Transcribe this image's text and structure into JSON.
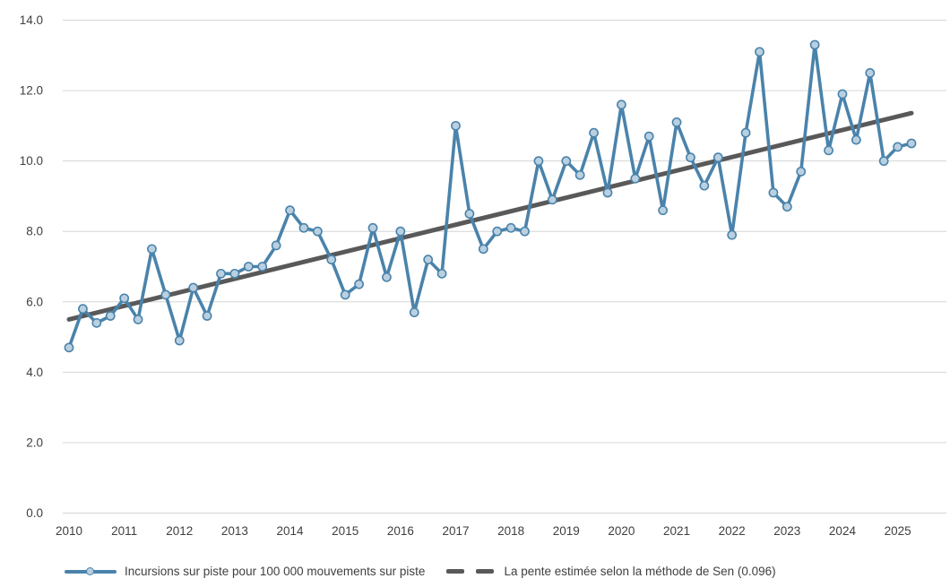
{
  "chart_data": {
    "type": "line",
    "title": "",
    "xlabel": "",
    "ylabel": "",
    "ylim": [
      0.0,
      14.0
    ],
    "y_tick_step": 2.0,
    "y_tick_labels": [
      "0.0",
      "2.0",
      "4.0",
      "6.0",
      "8.0",
      "10.0",
      "12.0",
      "14.0"
    ],
    "x_tick_labels": [
      "2010",
      "2011",
      "2012",
      "2013",
      "2014",
      "2015",
      "2016",
      "2017",
      "2018",
      "2019",
      "2020",
      "2021",
      "2022",
      "2023",
      "2024",
      "2025"
    ],
    "x_unit": "quarter",
    "grid": "horizontal",
    "legend_position": "bottom",
    "series": [
      {
        "name": "Incursions sur piste pour 100 000 mouvements sur piste",
        "kind": "line-with-markers",
        "color": "#4a83ab",
        "marker_fill": "#bad0e0",
        "start": "2010 Q1",
        "end": "2025 Q2",
        "values": [
          4.7,
          5.8,
          5.4,
          5.6,
          6.1,
          5.5,
          7.5,
          6.2,
          4.9,
          6.4,
          5.6,
          6.8,
          6.8,
          7.0,
          7.0,
          7.6,
          8.6,
          8.1,
          8.0,
          7.2,
          6.2,
          6.5,
          8.1,
          6.7,
          8.0,
          5.7,
          7.2,
          6.8,
          11.0,
          8.5,
          7.5,
          8.0,
          8.1,
          8.0,
          10.0,
          8.9,
          10.0,
          9.6,
          10.8,
          9.1,
          11.6,
          9.5,
          10.7,
          8.6,
          11.1,
          10.1,
          9.3,
          10.1,
          7.9,
          10.8,
          13.1,
          9.1,
          8.7,
          9.7,
          13.3,
          10.3,
          11.9,
          10.6,
          12.5,
          10.0,
          10.4,
          10.5
        ]
      },
      {
        "name": "La pente estimée selon la méthode de Sen (0.096)",
        "kind": "trend-line",
        "color": "#595959",
        "slope_per_quarter": 0.096,
        "start_value": 5.5,
        "end_value": 11.36
      }
    ]
  },
  "legend": {
    "series_label": "Incursions sur piste pour 100 000 mouvements sur piste",
    "trend_label": "La pente estimée selon la méthode de Sen (0.096)"
  },
  "colors": {
    "series_line": "#4a83ab",
    "marker_fill": "#bad0e0",
    "trend_line": "#595959",
    "gridline": "#d6d6d6",
    "axis_text": "#3f3f3f",
    "background": "#ffffff"
  }
}
